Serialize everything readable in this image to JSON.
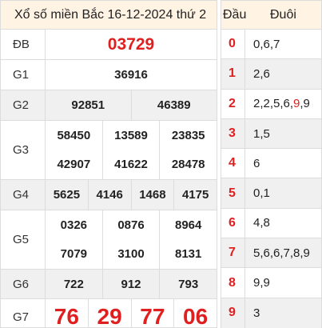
{
  "title": "Xổ số miền Bắc 16-12-2024 thứ 2",
  "right_header": {
    "dau": "Đầu",
    "duoi": "Đuôi"
  },
  "prizes": [
    {
      "label": "ĐB",
      "lines": [
        [
          "03729"
        ]
      ],
      "style": "db",
      "shade": false
    },
    {
      "label": "G1",
      "lines": [
        [
          "36916"
        ]
      ],
      "shade": false
    },
    {
      "label": "G2",
      "lines": [
        [
          "92851",
          "46389"
        ]
      ],
      "shade": true
    },
    {
      "label": "G3",
      "lines": [
        [
          "58450",
          "13589",
          "23835"
        ],
        [
          "42907",
          "41622",
          "28478"
        ]
      ],
      "shade": false
    },
    {
      "label": "G4",
      "lines": [
        [
          "5625",
          "4146",
          "1468",
          "4175"
        ]
      ],
      "shade": true
    },
    {
      "label": "G5",
      "lines": [
        [
          "0326",
          "0876",
          "8964"
        ],
        [
          "7079",
          "3100",
          "8131"
        ]
      ],
      "shade": false
    },
    {
      "label": "G6",
      "lines": [
        [
          "722",
          "912",
          "793"
        ]
      ],
      "shade": true
    },
    {
      "label": "G7",
      "lines": [
        [
          "76",
          "29",
          "77",
          "06"
        ]
      ],
      "style": "g7",
      "shade": false
    }
  ],
  "heads": [
    {
      "dau": "0",
      "duoi": "0,6,7"
    },
    {
      "dau": "1",
      "duoi": "2,6"
    },
    {
      "dau": "2",
      "duoi_pre": "2,2,5,6,",
      "duoi_hl": "9",
      "duoi_post": ",9"
    },
    {
      "dau": "3",
      "duoi": "1,5"
    },
    {
      "dau": "4",
      "duoi": "6"
    },
    {
      "dau": "5",
      "duoi": "0,1"
    },
    {
      "dau": "6",
      "duoi": "4,8"
    },
    {
      "dau": "7",
      "duoi": "5,6,6,7,8,9"
    },
    {
      "dau": "8",
      "duoi": "9,9"
    },
    {
      "dau": "9",
      "duoi": "3"
    }
  ],
  "colors": {
    "accent": "#e02020",
    "header_bg": "#fff3e4",
    "shade_bg": "#f0f0f0"
  }
}
